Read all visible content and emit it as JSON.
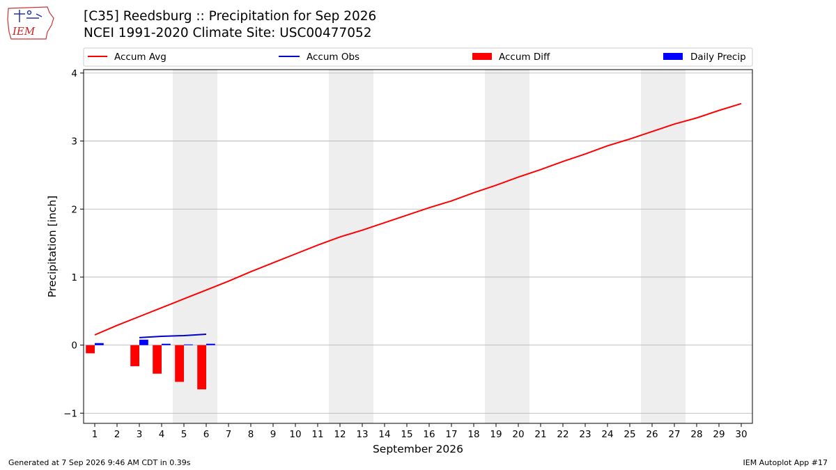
{
  "header": {
    "title_line1": "[C35] Reedsburg :: Precipitation for Sep 2026",
    "title_line2": "NCEI 1991-2020 Climate Site: USC00477052",
    "logo_text": "IEM"
  },
  "footer": {
    "generated": "Generated at 7 Sep 2026 9:46 AM CDT in 0.39s",
    "app": "IEM Autoplot App #17"
  },
  "colors": {
    "avg": "#ff0000",
    "obs": "#0000cc",
    "diff": "#ff0000",
    "daily": "#0000ff",
    "weekend": "#eeeeee",
    "grid": "#b0b0b0"
  },
  "chart_data": {
    "type": "bar",
    "xlabel": "September 2026",
    "ylabel": "Precipitation [inch]",
    "xlim": [
      0.5,
      30.5
    ],
    "ylim": [
      -1.15,
      4.05
    ],
    "yticks": [
      -1,
      0,
      1,
      2,
      3,
      4
    ],
    "yticklabels": [
      "−1",
      "0",
      "1",
      "2",
      "3",
      "4"
    ],
    "days": [
      1,
      2,
      3,
      4,
      5,
      6,
      7,
      8,
      9,
      10,
      11,
      12,
      13,
      14,
      15,
      16,
      17,
      18,
      19,
      20,
      21,
      22,
      23,
      24,
      25,
      26,
      27,
      28,
      29,
      30
    ],
    "grid": "horizontal",
    "legend_position": "top",
    "weekend_bands": [
      [
        4.5,
        6.5
      ],
      [
        11.5,
        13.5
      ],
      [
        18.5,
        20.5
      ],
      [
        25.5,
        27.5
      ]
    ],
    "series": [
      {
        "name": "Accum Avg",
        "kind": "line",
        "x": [
          1,
          2,
          3,
          4,
          5,
          6,
          7,
          8,
          9,
          10,
          11,
          12,
          13,
          14,
          15,
          16,
          17,
          18,
          19,
          20,
          21,
          22,
          23,
          24,
          25,
          26,
          27,
          28,
          29,
          30
        ],
        "values": [
          0.15,
          0.29,
          0.42,
          0.55,
          0.68,
          0.81,
          0.94,
          1.08,
          1.21,
          1.34,
          1.47,
          1.59,
          1.69,
          1.8,
          1.91,
          2.02,
          2.12,
          2.24,
          2.35,
          2.47,
          2.58,
          2.7,
          2.81,
          2.93,
          3.03,
          3.14,
          3.25,
          3.34,
          3.45,
          3.55
        ]
      },
      {
        "name": "Accum Obs",
        "kind": "line",
        "x": [
          3,
          4,
          5,
          6
        ],
        "values": [
          0.11,
          0.13,
          0.14,
          0.16
        ]
      },
      {
        "name": "Accum Diff",
        "kind": "bar",
        "x": [
          1,
          3,
          4,
          5,
          6
        ],
        "values": [
          -0.12,
          -0.31,
          -0.42,
          -0.54,
          -0.65
        ]
      },
      {
        "name": "Daily Precip",
        "kind": "bar",
        "x": [
          1,
          3,
          4,
          5,
          6
        ],
        "values": [
          0.03,
          0.08,
          0.02,
          0.01,
          0.02
        ]
      }
    ]
  }
}
